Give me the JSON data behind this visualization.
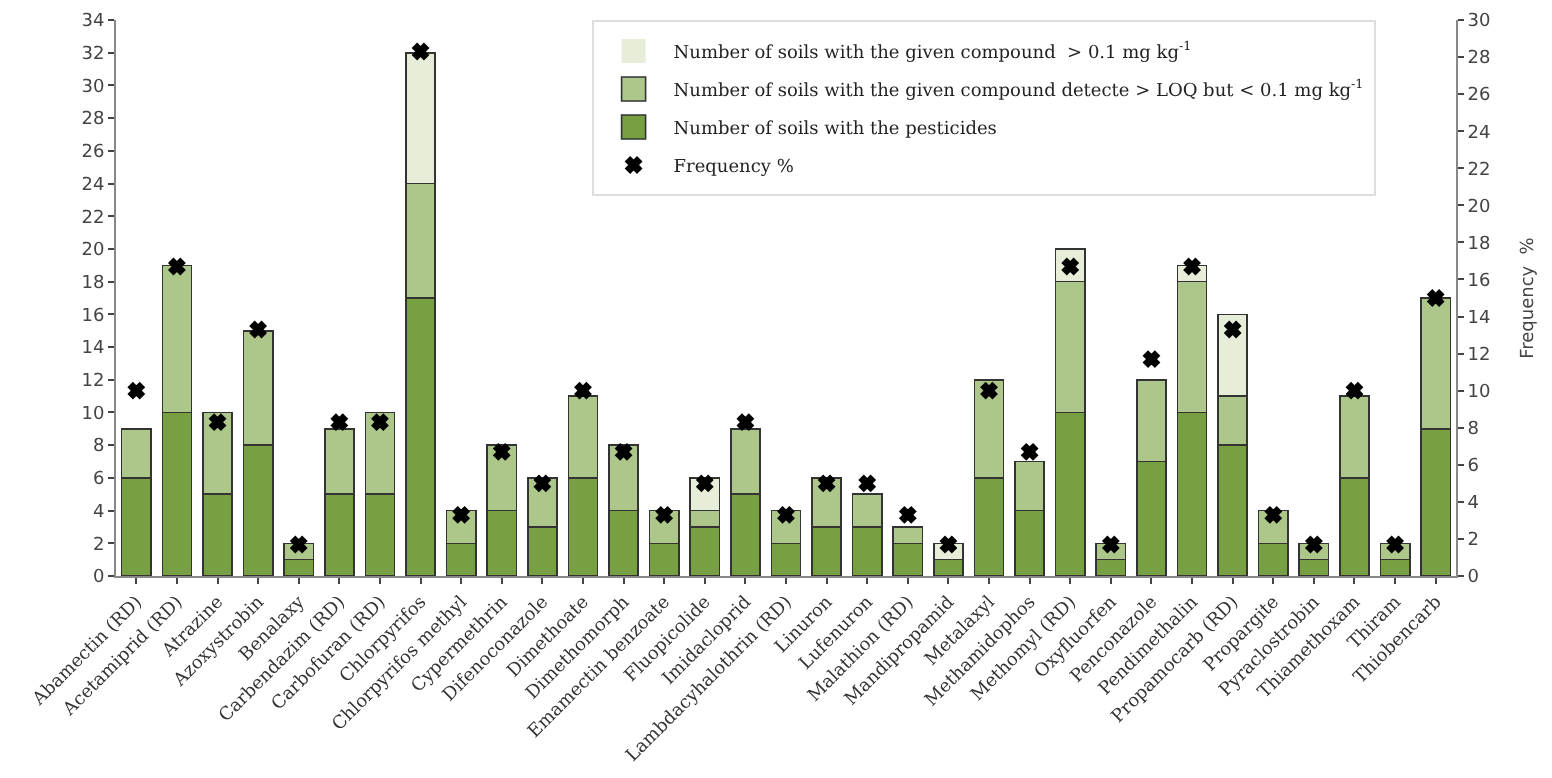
{
  "chart_data": {
    "type": "bar",
    "stacked": true,
    "categories": [
      "Abamectin (RD)",
      "Acetamiprid (RD)",
      "Atrazine",
      "Azoxystrobin",
      "Benalaxy",
      "Carbendazim (RD)",
      "Carbofuran (RD)",
      "Chlorpyrifos",
      "Chlorpyrifos methyl",
      "Cypermethrin",
      "Difenoconazole",
      "Dimethoate",
      "Dimethomorph",
      "Emamectin benzoate",
      "Fluopicolide",
      "Imidacloprid",
      "Lambdacyhalothrin (RD)",
      "Linuron",
      "Lufenuron",
      "Malathion (RD)",
      "Mandipropamid",
      "Metalaxyl",
      "Methamidophos",
      "Methomyl (RD)",
      "Oxyfluorfen",
      "Penconazole",
      "Pendimethalin",
      "Propamocarb (RD)",
      "Propargite",
      "Pyraclostrobin",
      "Thiamethoxam",
      "Thiram",
      "Thiobencarb"
    ],
    "series": [
      {
        "name": "Number of soils with the pesticides",
        "color": "#77a043",
        "values": [
          6,
          10,
          5,
          8,
          1,
          5,
          5,
          17,
          2,
          4,
          3,
          6,
          4,
          2,
          3,
          5,
          2,
          3,
          3,
          2,
          1,
          6,
          4,
          10,
          1,
          7,
          10,
          8,
          2,
          1,
          6,
          1,
          9
        ]
      },
      {
        "name": "Number of soils with the given compound detecte > LOQ but < 0.1 mg kg$^{-1}$",
        "color": "#adc68a",
        "values": [
          3,
          9,
          5,
          7,
          1,
          4,
          5,
          7,
          2,
          4,
          3,
          5,
          4,
          2,
          1,
          4,
          2,
          3,
          2,
          1,
          0,
          6,
          3,
          8,
          1,
          5,
          8,
          3,
          2,
          1,
          5,
          1,
          8
        ]
      },
      {
        "name": "Number of soils with the given compound  > 0.1 mg kg$^{-1}$",
        "color": "#e6edd8",
        "values": [
          0,
          0,
          0,
          0,
          0,
          0,
          0,
          8,
          0,
          0,
          0,
          0,
          0,
          0,
          2,
          0,
          0,
          0,
          0,
          0,
          1,
          0,
          0,
          2,
          0,
          0,
          1,
          5,
          0,
          0,
          0,
          0,
          0
        ]
      },
      {
        "name": "Frequency %",
        "type": "scatter",
        "axis": "y2",
        "color": "#000000",
        "marker": "cross",
        "values": [
          10,
          16.7,
          8.3,
          13.3,
          1.7,
          8.3,
          8.3,
          28.3,
          3.3,
          6.7,
          5,
          10,
          6.7,
          3.3,
          5,
          8.3,
          3.3,
          5,
          5,
          3.3,
          1.7,
          10,
          6.7,
          16.7,
          1.7,
          11.7,
          16.7,
          13.3,
          3.3,
          1.7,
          10,
          1.7,
          15
        ]
      }
    ],
    "ylim": [
      0,
      34
    ],
    "yticks": [
      0,
      2,
      4,
      6,
      8,
      10,
      12,
      14,
      16,
      18,
      20,
      22,
      24,
      26,
      28,
      30,
      32,
      34
    ],
    "y2lim": [
      0,
      30
    ],
    "y2ticks": [
      0,
      2,
      4,
      6,
      8,
      10,
      12,
      14,
      16,
      18,
      20,
      22,
      24,
      26,
      28,
      30
    ],
    "y2label": "Frequency  %",
    "legend": "top right"
  }
}
